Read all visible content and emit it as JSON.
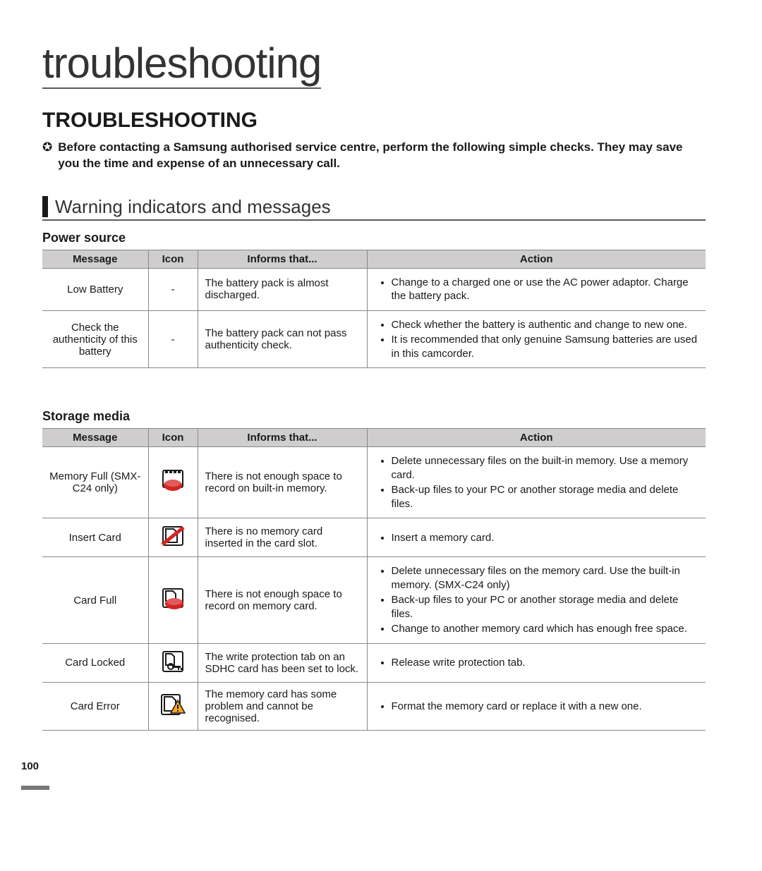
{
  "page": {
    "header_title": "troubleshooting",
    "main_heading": "TROUBLESHOOTING",
    "intro_icon": "✪",
    "intro_text": "Before contacting a Samsung authorised service centre, perform the following simple checks. They may save you the time and expense of an unnecessary call.",
    "page_number": "100"
  },
  "section": {
    "title": "Warning indicators and messages"
  },
  "tables": {
    "power_source": {
      "heading": "Power source",
      "columns": [
        "Message",
        "Icon",
        "Informs that...",
        "Action"
      ],
      "rows": [
        {
          "message": "Low Battery",
          "icon": "-",
          "informs": "The battery pack is almost discharged.",
          "actions": [
            "Change to a charged one or use the AC power adaptor. Charge the battery pack."
          ]
        },
        {
          "message": "Check the authenticity of this battery",
          "icon": "-",
          "informs": "The battery pack can not pass authenticity check.",
          "actions": [
            "Check whether the battery is authentic and change to new one.",
            "It is recommended that only genuine Samsung batteries are used in this camcorder."
          ]
        }
      ]
    },
    "storage_media": {
      "heading": "Storage media",
      "columns": [
        "Message",
        "Icon",
        "Informs that...",
        "Action"
      ],
      "rows": [
        {
          "message": "Memory Full (SMX-C24 only)",
          "icon": "memory-full-icon",
          "informs": "There is not enough space to record on built-in memory.",
          "actions": [
            "Delete unnecessary files on the built-in memory. Use a memory card.",
            "Back-up files to your PC or another storage media and delete files."
          ]
        },
        {
          "message": "Insert Card",
          "icon": "insert-card-icon",
          "informs": "There is no memory card inserted in the card slot.",
          "actions": [
            "Insert a memory card."
          ]
        },
        {
          "message": "Card Full",
          "icon": "card-full-icon",
          "informs": "There is not enough space to record on memory card.",
          "actions": [
            "Delete unnecessary files on the memory card. Use the built-in memory. (SMX-C24 only)",
            "Back-up files to your PC or another storage media and delete files.",
            "Change to another memory card which has enough free space."
          ]
        },
        {
          "message": "Card Locked",
          "icon": "card-locked-icon",
          "informs": "The write protection tab on an SDHC card has been set to lock.",
          "actions": [
            "Release write protection tab."
          ]
        },
        {
          "message": "Card Error",
          "icon": "card-error-icon",
          "informs": "The memory card has some problem and cannot be recognised.",
          "actions": [
            "Format the memory card or replace it with a new one."
          ]
        }
      ]
    }
  },
  "colors": {
    "header_rule": "#5a5a5a",
    "table_border": "#888888",
    "table_header_bg": "#cfcdce",
    "icon_red": "#d62423",
    "icon_black": "#1a1a1a",
    "icon_orange": "#f5a623"
  }
}
